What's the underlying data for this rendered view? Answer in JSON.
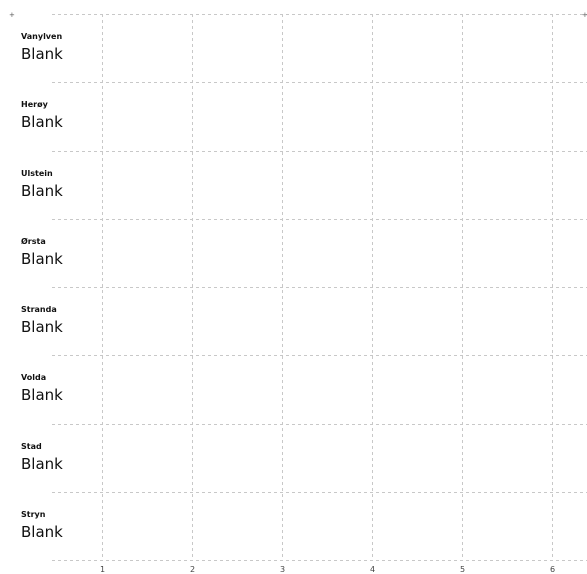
{
  "chart_data": {
    "type": "bar",
    "categories": [
      "Vanylven",
      "Herøy",
      "Ulstein",
      "Ørsta",
      "Stranda",
      "Volda",
      "Stad",
      "Stryn"
    ],
    "value_labels": [
      "Blank",
      "Blank",
      "Blank",
      "Blank",
      "Blank",
      "Blank",
      "Blank",
      "Blank"
    ],
    "values": [
      null,
      null,
      null,
      null,
      null,
      null,
      null,
      null
    ],
    "x_ticks": [
      1,
      2,
      3,
      4,
      5,
      6
    ],
    "xlim": [
      0.44,
      6.38
    ],
    "grid": true,
    "corner_marks": [
      "+",
      "+"
    ],
    "colors": {
      "grid": "#c8c8c8",
      "text": "#111111"
    }
  }
}
